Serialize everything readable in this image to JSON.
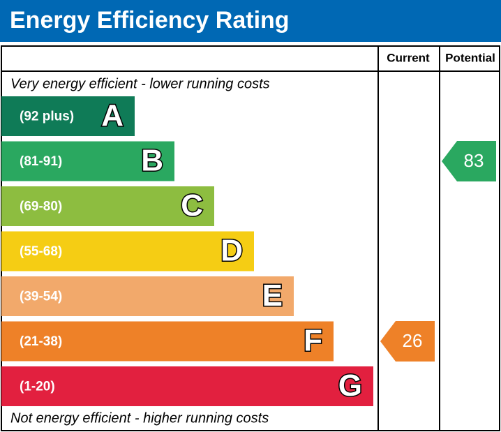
{
  "title": "Energy Efficiency Rating",
  "columns": [
    "Current",
    "Potential"
  ],
  "top_note": "Very energy efficient - lower running costs",
  "bottom_note": "Not energy efficient - higher running costs",
  "bands": [
    {
      "range": "(92 plus)",
      "letter": "A",
      "color": "#0f7b57"
    },
    {
      "range": "(81-91)",
      "letter": "B",
      "color": "#2aa860"
    },
    {
      "range": "(69-80)",
      "letter": "C",
      "color": "#8dbd40"
    },
    {
      "range": "(55-68)",
      "letter": "D",
      "color": "#f5cd14"
    },
    {
      "range": "(39-54)",
      "letter": "E",
      "color": "#f2a96b"
    },
    {
      "range": "(21-38)",
      "letter": "F",
      "color": "#ee8128"
    },
    {
      "range": "(1-20)",
      "letter": "G",
      "color": "#e2203f"
    }
  ],
  "ratings": [
    26,
    83
  ]
}
